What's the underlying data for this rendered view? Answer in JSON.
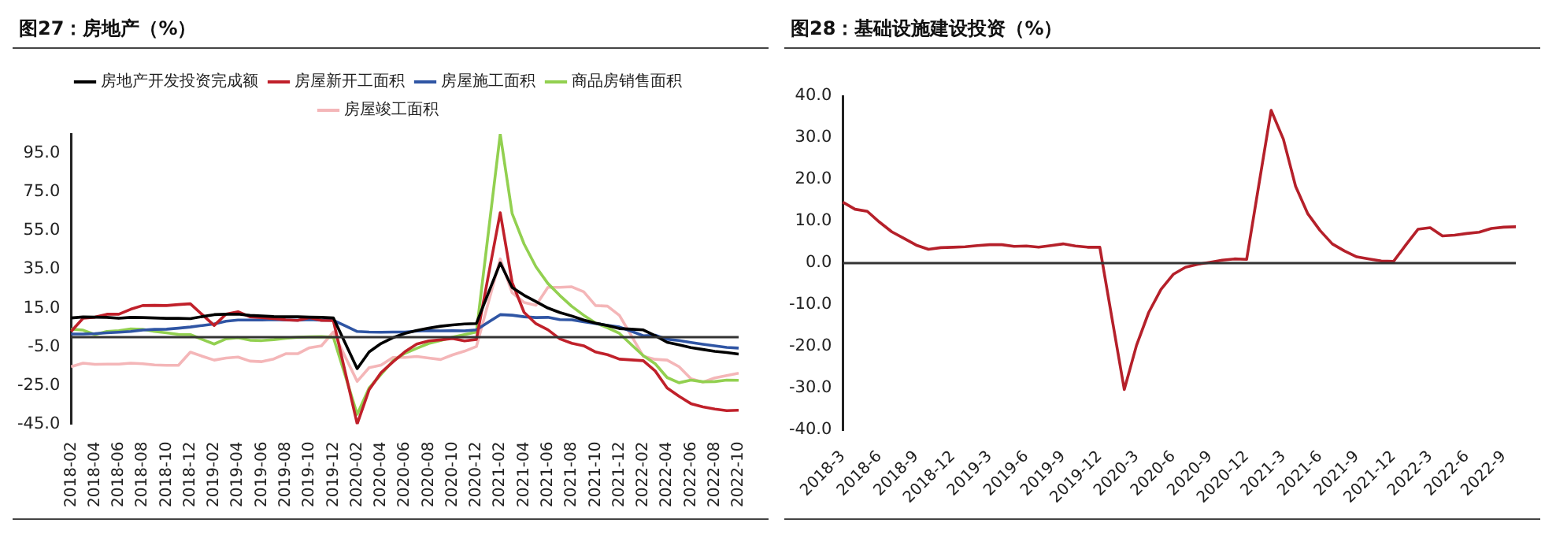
{
  "chart_data": [
    {
      "type": "line",
      "title": "图27：房地产（%）",
      "legend": "top",
      "ylim": [
        -45,
        105
      ],
      "yticks": [
        {
          "value": -45,
          "label": "-45.0"
        },
        {
          "value": -25,
          "label": "-25.0"
        },
        {
          "value": -5,
          "label": "-5.0"
        },
        {
          "value": 15,
          "label": "15.0"
        },
        {
          "value": 35,
          "label": "35.0"
        },
        {
          "value": 55,
          "label": "55.0"
        },
        {
          "value": 75,
          "label": "75.0"
        },
        {
          "value": 95,
          "label": "95.0"
        }
      ],
      "categories": [
        "2018-02",
        null,
        "2018-04",
        null,
        "2018-06",
        null,
        "2018-08",
        null,
        "2018-10",
        null,
        "2018-12",
        null,
        "2019-02",
        null,
        "2019-04",
        null,
        "2019-06",
        null,
        "2019-08",
        null,
        "2019-10",
        null,
        "2019-12",
        null,
        "2020-02",
        null,
        "2020-04",
        null,
        "2020-06",
        null,
        "2020-08",
        null,
        "2020-10",
        null,
        "2020-12",
        null,
        "2021-02",
        null,
        "2021-04",
        null,
        "2021-06",
        null,
        "2021-08",
        null,
        "2021-10",
        null,
        "2021-12",
        null,
        "2022-02",
        null,
        "2022-04",
        null,
        "2022-06",
        null,
        "2022-08",
        null,
        "2022-10"
      ],
      "series": [
        {
          "name": "房地产开发投资完成额",
          "color": "#000000",
          "values": [
            9.9,
            10.4,
            10.3,
            10.2,
            9.7,
            10.2,
            10.1,
            9.9,
            9.7,
            9.7,
            9.5,
            10.6,
            11.6,
            11.8,
            11.9,
            11.2,
            10.9,
            10.6,
            10.5,
            10.5,
            10.3,
            10.2,
            9.9,
            -3.2,
            -16.3,
            -7.7,
            -3.3,
            -0.3,
            1.9,
            3.4,
            4.6,
            5.6,
            6.3,
            6.8,
            7.0,
            22.7,
            38.3,
            25.6,
            21.6,
            18.3,
            15.0,
            12.7,
            10.9,
            8.8,
            7.2,
            6.0,
            4.4,
            4.1,
            3.7,
            0.7,
            -2.7,
            -4.0,
            -5.4,
            -6.4,
            -7.4,
            -8.0,
            -8.8
          ]
        },
        {
          "name": "房屋新开工面积",
          "color": "#c0202a",
          "values": [
            2.9,
            9.7,
            10.3,
            11.8,
            11.8,
            14.4,
            16.3,
            16.4,
            16.3,
            16.8,
            17.2,
            11.6,
            6.0,
            11.9,
            13.1,
            10.5,
            10.1,
            9.5,
            8.9,
            8.6,
            10.0,
            8.6,
            8.5,
            -18.2,
            -44.9,
            -27.2,
            -18.4,
            -12.8,
            -7.6,
            -3.6,
            -2.0,
            -1.4,
            -0.7,
            -2.0,
            -1.2,
            31.6,
            64.3,
            28.2,
            12.8,
            6.9,
            3.8,
            -0.9,
            -3.2,
            -4.5,
            -7.7,
            -9.1,
            -11.4,
            -11.8,
            -12.2,
            -17.5,
            -26.3,
            -30.6,
            -34.4,
            -36.1,
            -37.2,
            -38.0,
            -37.8
          ]
        },
        {
          "name": "房屋施工面积",
          "color": "#2f55a4",
          "values": [
            1.6,
            1.6,
            1.8,
            2.2,
            2.5,
            2.9,
            3.6,
            4.0,
            4.1,
            4.6,
            5.2,
            6.0,
            6.8,
            8.2,
            8.8,
            8.8,
            8.8,
            9.0,
            8.8,
            8.7,
            9.0,
            8.7,
            8.7,
            5.8,
            2.9,
            2.6,
            2.5,
            2.6,
            2.6,
            3.1,
            3.3,
            3.2,
            3.3,
            3.2,
            3.7,
            7.7,
            11.6,
            11.3,
            10.5,
            10.1,
            10.2,
            9.0,
            8.9,
            7.9,
            7.0,
            6.1,
            5.2,
            3.0,
            0.7,
            1.0,
            -1.1,
            -1.8,
            -2.8,
            -3.7,
            -4.5,
            -5.3,
            -5.7
          ]
        },
        {
          "name": "商品房销售面积",
          "color": "#92d050",
          "values": [
            4.1,
            3.6,
            1.3,
            2.9,
            3.3,
            4.2,
            4.0,
            2.9,
            2.2,
            1.4,
            1.3,
            -1.2,
            -3.6,
            -0.9,
            -0.3,
            -1.6,
            -1.8,
            -1.3,
            -0.6,
            -0.1,
            0.1,
            0.2,
            -0.1,
            -20.0,
            -39.9,
            -26.3,
            -19.3,
            -12.3,
            -8.4,
            -5.8,
            -3.3,
            -1.8,
            0.0,
            1.3,
            2.6,
            53.8,
            104.9,
            63.8,
            48.1,
            36.3,
            27.7,
            21.5,
            15.9,
            11.3,
            7.3,
            4.8,
            1.9,
            -3.9,
            -9.6,
            -13.8,
            -20.9,
            -23.6,
            -22.2,
            -23.1,
            -23.0,
            -22.2,
            -22.3
          ]
        },
        {
          "name": "房屋竣工面积",
          "color": "#f4b6b8",
          "values": [
            -15.3,
            -13.5,
            -14.1,
            -14.0,
            -14.0,
            -13.5,
            -13.8,
            -14.4,
            -14.6,
            -14.6,
            -7.8,
            -9.9,
            -11.9,
            -10.8,
            -10.3,
            -12.4,
            -12.7,
            -11.3,
            -8.6,
            -8.6,
            -5.5,
            -4.5,
            2.6,
            -10.2,
            -22.9,
            -15.8,
            -14.5,
            -10.5,
            -10.5,
            -10.0,
            -10.8,
            -11.6,
            -9.2,
            -7.3,
            -4.9,
            17.8,
            40.4,
            22.9,
            17.9,
            16.4,
            25.7,
            25.7,
            26.0,
            23.4,
            16.3,
            16.0,
            11.2,
            0.7,
            -9.9,
            -11.5,
            -11.9,
            -15.3,
            -21.5,
            -23.3,
            -21.1,
            -19.9,
            -18.7
          ]
        }
      ]
    },
    {
      "type": "line",
      "title": "图28：基础设施建设投资（%）",
      "ylim": [
        -40,
        40
      ],
      "yticks": [
        {
          "value": -40,
          "label": "-40.0"
        },
        {
          "value": -30,
          "label": "-30.0"
        },
        {
          "value": -20,
          "label": "-20.0"
        },
        {
          "value": -10,
          "label": "-10.0"
        },
        {
          "value": 0,
          "label": "0.0"
        },
        {
          "value": 10,
          "label": "10.0"
        },
        {
          "value": 20,
          "label": "20.0"
        },
        {
          "value": 30,
          "label": "30.0"
        },
        {
          "value": 40,
          "label": "40.0"
        }
      ],
      "categories": [
        "2018-3",
        null,
        null,
        "2018-6",
        null,
        null,
        "2018-9",
        null,
        null,
        "2018-12",
        null,
        null,
        "2019-3",
        null,
        null,
        "2019-6",
        null,
        null,
        "2019-9",
        null,
        null,
        "2019-12",
        null,
        null,
        "2020-3",
        null,
        null,
        "2020-6",
        null,
        null,
        "2020-9",
        null,
        null,
        "2020-12",
        null,
        null,
        "2021-3",
        null,
        null,
        "2021-6",
        null,
        null,
        "2021-9",
        null,
        null,
        "2021-12",
        null,
        null,
        "2022-3",
        null,
        null,
        "2022-6",
        null,
        null,
        "2022-9",
        null
      ],
      "series": [
        {
          "color": "#b5202a",
          "values": [
            14.6,
            12.9,
            12.4,
            9.8,
            7.5,
            5.9,
            4.3,
            3.3,
            3.7,
            3.8,
            3.9,
            4.2,
            4.4,
            4.4,
            4.0,
            4.1,
            3.8,
            4.2,
            4.6,
            4.1,
            3.8,
            3.8,
            -13.3,
            -30.3,
            -19.7,
            -11.8,
            -6.3,
            -2.7,
            -1.0,
            -0.3,
            0.2,
            0.7,
            1.0,
            0.9,
            18.8,
            36.6,
            29.7,
            18.4,
            11.8,
            7.8,
            4.6,
            2.9,
            1.5,
            1.0,
            0.5,
            0.4,
            4.3,
            8.1,
            8.5,
            6.5,
            6.7,
            7.1,
            7.4,
            8.3,
            8.6,
            8.7
          ]
        }
      ]
    }
  ]
}
